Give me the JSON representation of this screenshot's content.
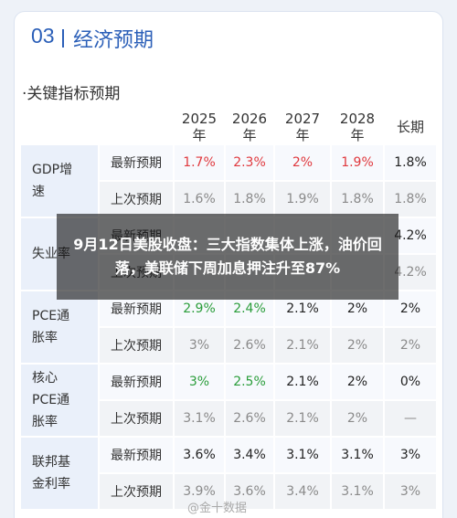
{
  "header": {
    "number": "03",
    "title": "经济预期"
  },
  "subtitle": "·关键指标预期",
  "table": {
    "columns": [
      "2025年",
      "2026年",
      "2027年",
      "2028年",
      "长期"
    ],
    "groups": [
      {
        "label": "GDP增速",
        "rows": [
          {
            "label": "最新预期",
            "cells": [
              "1.7%",
              "2.3%",
              "2%",
              "1.9%",
              "1.8%"
            ],
            "cell_colors": [
              "#e0393e",
              "#e0393e",
              "#e0393e",
              "#e0393e",
              "#222222"
            ]
          },
          {
            "label": "上次预期",
            "cells": [
              "1.6%",
              "1.8%",
              "1.9%",
              "1.8%",
              "1.8%"
            ],
            "cell_colors": [
              "#8a8a8a",
              "#8a8a8a",
              "#8a8a8a",
              "#8a8a8a",
              "#8a8a8a"
            ]
          }
        ]
      },
      {
        "label": "失业率",
        "rows": [
          {
            "label": "最新预期",
            "cells": [
              null,
              null,
              null,
              null,
              "4.2%"
            ],
            "cell_colors": [
              "#222222",
              "#222222",
              "#222222",
              "#222222",
              "#222222"
            ]
          },
          {
            "label": "上次预期",
            "cells": [
              null,
              null,
              null,
              null,
              "4.2%"
            ],
            "cell_colors": [
              "#8a8a8a",
              "#8a8a8a",
              "#8a8a8a",
              "#8a8a8a",
              "#8a8a8a"
            ]
          }
        ]
      },
      {
        "label": "PCE通胀率",
        "rows": [
          {
            "label": "最新预期",
            "cells": [
              "2.9%",
              "2.4%",
              "2.1%",
              "2%",
              "2%"
            ],
            "cell_colors": [
              "#2a9d3a",
              "#2a9d3a",
              "#222222",
              "#222222",
              "#222222"
            ]
          },
          {
            "label": "上次预期",
            "cells": [
              "3%",
              "2.6%",
              "2.1%",
              "2%",
              "2%"
            ],
            "cell_colors": [
              "#8a8a8a",
              "#8a8a8a",
              "#8a8a8a",
              "#8a8a8a",
              "#8a8a8a"
            ]
          }
        ]
      },
      {
        "label": "核心PCE通胀率",
        "rows": [
          {
            "label": "最新预期",
            "cells": [
              "3%",
              "2.5%",
              "2.1%",
              "2%",
              "0%"
            ],
            "cell_colors": [
              "#2a9d3a",
              "#2a9d3a",
              "#222222",
              "#222222",
              "#222222"
            ]
          },
          {
            "label": "上次预期",
            "cells": [
              "3.1%",
              "2.6%",
              "2.1%",
              "2%",
              "—"
            ],
            "cell_colors": [
              "#8a8a8a",
              "#8a8a8a",
              "#8a8a8a",
              "#8a8a8a",
              "#8a8a8a"
            ]
          }
        ]
      },
      {
        "label": "联邦基金利率",
        "rows": [
          {
            "label": "最新预期",
            "cells": [
              "3.6%",
              "3.4%",
              "3.1%",
              "3.1%",
              "3%"
            ],
            "cell_colors": [
              "#222222",
              "#222222",
              "#222222",
              "#222222",
              "#222222"
            ]
          },
          {
            "label": "上次预期",
            "cells": [
              "3.9%",
              "3.6%",
              "3.4%",
              "3.1%",
              "3%"
            ],
            "cell_colors": [
              "#8a8a8a",
              "#8a8a8a",
              "#8a8a8a",
              "#8a8a8a",
              "#8a8a8a"
            ]
          }
        ]
      }
    ]
  },
  "overlay_caption": "9月12日美股收盘：三大指数集体上涨，油价回落，美联储下周加息押注升至87%",
  "watermark": "@金十数据"
}
